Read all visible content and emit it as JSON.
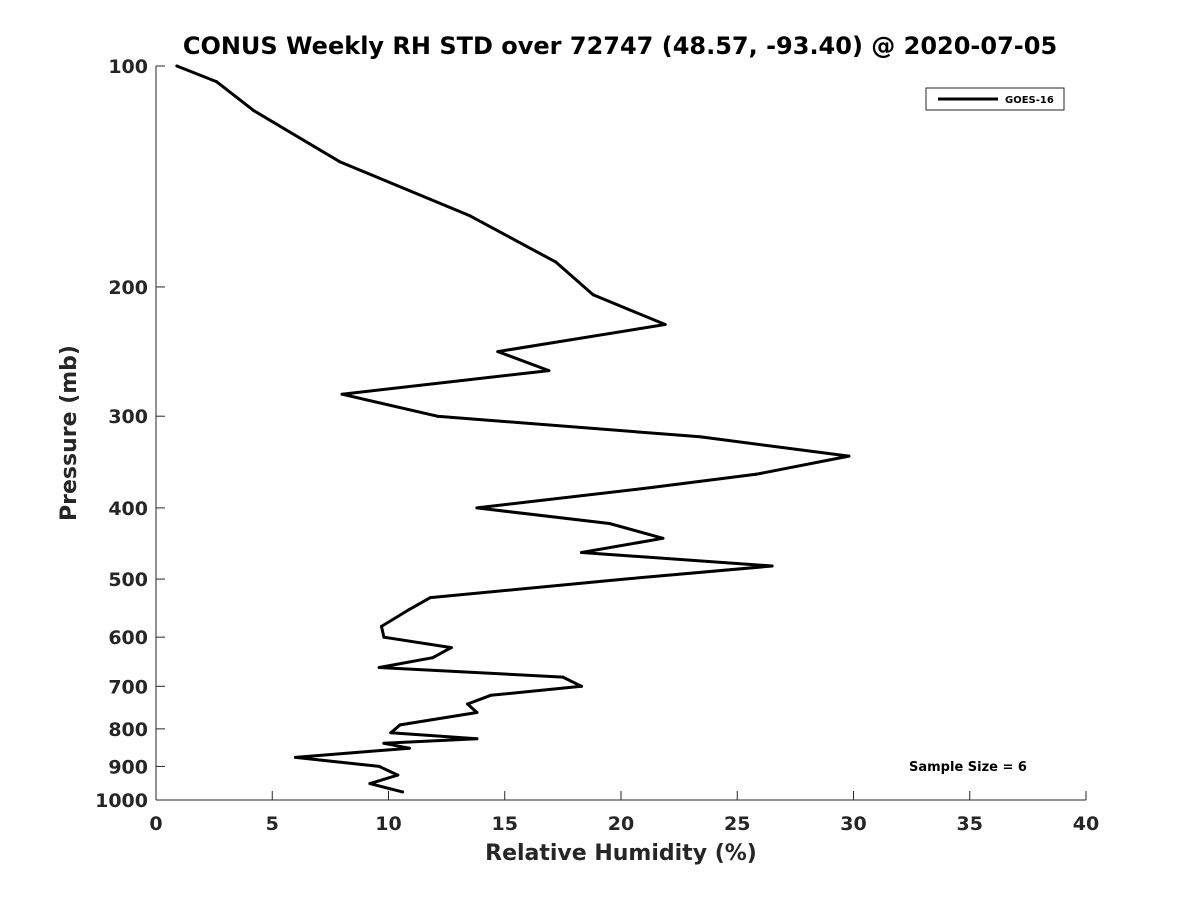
{
  "chart_data": {
    "type": "line",
    "title": "CONUS Weekly RH STD over 72747 (48.57, -93.40) @ 2020-07-05",
    "xlabel": "Relative Humidity (%)",
    "ylabel": "Pressure (mb)",
    "xlim": [
      0,
      40
    ],
    "ylim": [
      100,
      1000
    ],
    "yscale": "log",
    "y_reversed": true,
    "grid": false,
    "xticks": [
      0,
      5,
      10,
      15,
      20,
      25,
      30,
      35,
      40
    ],
    "yticks": [
      100,
      200,
      300,
      400,
      500,
      600,
      700,
      800,
      900,
      1000
    ],
    "legend_position": "top-right",
    "series": [
      {
        "name": "GOES-16",
        "color": "#000000",
        "x": [
          10.6,
          9.2,
          10.4,
          9.6,
          6.0,
          10.9,
          9.8,
          13.8,
          10.1,
          10.5,
          13.8,
          13.4,
          14.4,
          18.3,
          17.5,
          9.6,
          11.9,
          12.7,
          9.8,
          9.7,
          10.9,
          11.8,
          20.2,
          26.5,
          18.3,
          21.8,
          19.5,
          13.8,
          21.4,
          25.8,
          29.8,
          23.4,
          12.1,
          8.0,
          16.9,
          14.7,
          21.9,
          18.8,
          17.2,
          13.5,
          7.9,
          4.2,
          2.6,
          0.9
        ],
        "y": [
          975,
          950,
          925,
          900,
          875,
          850,
          837,
          825,
          810,
          790,
          760,
          740,
          720,
          700,
          680,
          660,
          640,
          620,
          600,
          580,
          550,
          530,
          500,
          480,
          460,
          440,
          420,
          400,
          375,
          360,
          340,
          320,
          300,
          280,
          260,
          245,
          225,
          205,
          185,
          160,
          135,
          115,
          105,
          100
        ]
      }
    ],
    "annotations": [
      "Sample Size = 6"
    ]
  }
}
